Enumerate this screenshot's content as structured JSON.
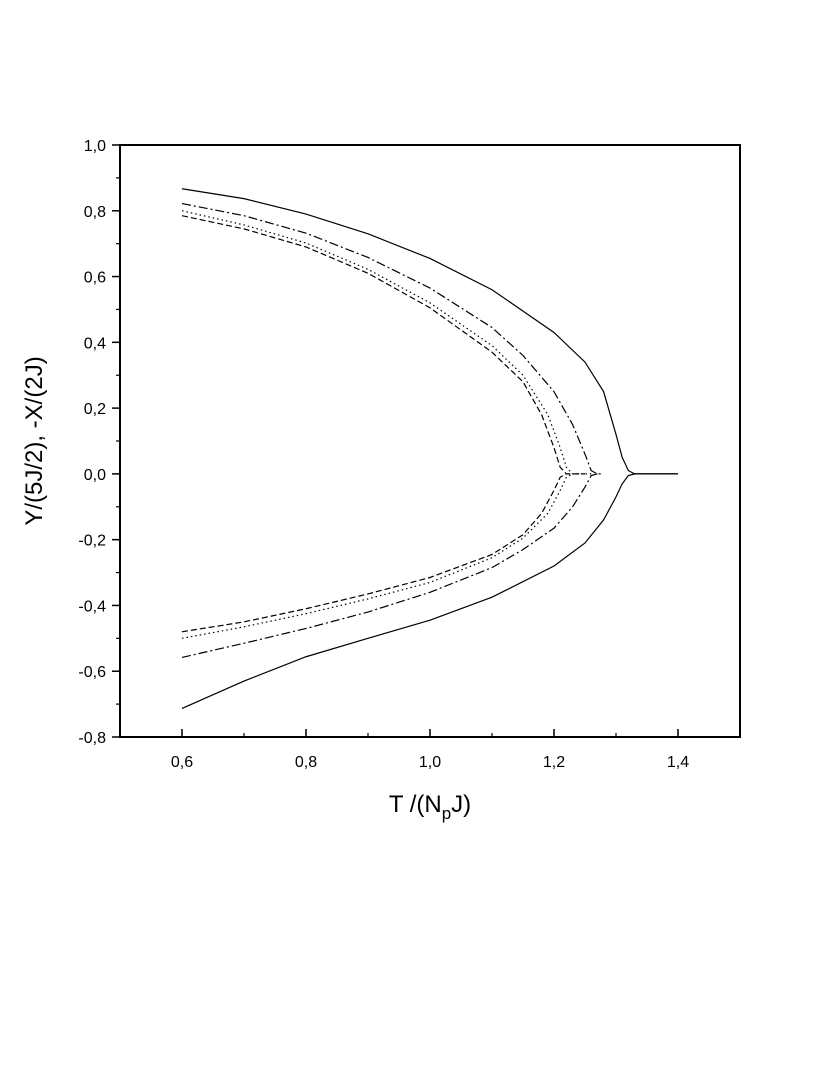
{
  "chart_data": {
    "type": "line",
    "title": "",
    "xlabel": {
      "main": "T /(N",
      "sub": "p",
      "tail": "J)"
    },
    "ylabel": "Y/(5J/2), -X/(2J)",
    "xlim": [
      0.5,
      1.5
    ],
    "ylim": [
      -0.8,
      1.0
    ],
    "x_ticks": [
      0.6,
      0.8,
      1.0,
      1.2,
      1.4
    ],
    "x_tick_labels": [
      "0,6",
      "0,8",
      "1,0",
      "1,2",
      "1,4"
    ],
    "y_ticks": [
      -0.8,
      -0.6,
      -0.4,
      -0.2,
      0.0,
      0.2,
      0.4,
      0.6,
      0.8,
      1.0
    ],
    "y_tick_labels": [
      "-0,8",
      "-0,6",
      "-0,4",
      "-0,2",
      "0,0",
      "0,2",
      "0,4",
      "0,6",
      "0,8",
      "1,0"
    ],
    "grid": false,
    "legend": "none",
    "series": [
      {
        "style": "solid",
        "points": [
          [
            0.6,
            0.867
          ],
          [
            0.7,
            0.837
          ],
          [
            0.8,
            0.79
          ],
          [
            0.9,
            0.73
          ],
          [
            1.0,
            0.655
          ],
          [
            1.1,
            0.56
          ],
          [
            1.2,
            0.43
          ],
          [
            1.25,
            0.34
          ],
          [
            1.28,
            0.25
          ],
          [
            1.3,
            0.12
          ],
          [
            1.31,
            0.05
          ],
          [
            1.32,
            0.01
          ],
          [
            1.33,
            0.0
          ],
          [
            1.4,
            0.0
          ]
        ]
      },
      {
        "style": "solid",
        "points": [
          [
            0.6,
            -0.713
          ],
          [
            0.7,
            -0.63
          ],
          [
            0.8,
            -0.556
          ],
          [
            0.9,
            -0.5
          ],
          [
            1.0,
            -0.445
          ],
          [
            1.1,
            -0.375
          ],
          [
            1.2,
            -0.28
          ],
          [
            1.25,
            -0.21
          ],
          [
            1.28,
            -0.14
          ],
          [
            1.3,
            -0.07
          ],
          [
            1.31,
            -0.03
          ],
          [
            1.32,
            -0.005
          ],
          [
            1.33,
            0.0
          ],
          [
            1.4,
            0.0
          ]
        ]
      },
      {
        "style": "dashdot",
        "points": [
          [
            0.6,
            0.822
          ],
          [
            0.7,
            0.785
          ],
          [
            0.8,
            0.732
          ],
          [
            0.9,
            0.658
          ],
          [
            1.0,
            0.565
          ],
          [
            1.1,
            0.445
          ],
          [
            1.15,
            0.36
          ],
          [
            1.2,
            0.25
          ],
          [
            1.23,
            0.15
          ],
          [
            1.25,
            0.06
          ],
          [
            1.26,
            0.01
          ],
          [
            1.27,
            0.0
          ],
          [
            1.28,
            0.0
          ]
        ]
      },
      {
        "style": "dashdot",
        "points": [
          [
            0.6,
            -0.558
          ],
          [
            0.7,
            -0.515
          ],
          [
            0.8,
            -0.47
          ],
          [
            0.9,
            -0.42
          ],
          [
            1.0,
            -0.36
          ],
          [
            1.1,
            -0.285
          ],
          [
            1.15,
            -0.23
          ],
          [
            1.2,
            -0.165
          ],
          [
            1.23,
            -0.1
          ],
          [
            1.25,
            -0.04
          ],
          [
            1.26,
            -0.005
          ],
          [
            1.27,
            0.0
          ]
        ]
      },
      {
        "style": "dotted",
        "points": [
          [
            0.6,
            0.8
          ],
          [
            0.7,
            0.757
          ],
          [
            0.8,
            0.702
          ],
          [
            0.9,
            0.622
          ],
          [
            1.0,
            0.52
          ],
          [
            1.1,
            0.39
          ],
          [
            1.15,
            0.3
          ],
          [
            1.19,
            0.18
          ],
          [
            1.21,
            0.08
          ],
          [
            1.22,
            0.02
          ],
          [
            1.23,
            0.0
          ],
          [
            1.26,
            0.0
          ]
        ]
      },
      {
        "style": "dotted",
        "points": [
          [
            0.6,
            -0.5
          ],
          [
            0.7,
            -0.465
          ],
          [
            0.8,
            -0.425
          ],
          [
            0.9,
            -0.38
          ],
          [
            1.0,
            -0.33
          ],
          [
            1.1,
            -0.255
          ],
          [
            1.15,
            -0.195
          ],
          [
            1.19,
            -0.12
          ],
          [
            1.21,
            -0.05
          ],
          [
            1.22,
            -0.01
          ],
          [
            1.23,
            0.0
          ]
        ]
      },
      {
        "style": "dashed",
        "points": [
          [
            0.6,
            0.785
          ],
          [
            0.7,
            0.745
          ],
          [
            0.8,
            0.69
          ],
          [
            0.9,
            0.61
          ],
          [
            1.0,
            0.505
          ],
          [
            1.1,
            0.37
          ],
          [
            1.15,
            0.28
          ],
          [
            1.18,
            0.18
          ],
          [
            1.2,
            0.08
          ],
          [
            1.21,
            0.02
          ],
          [
            1.22,
            0.0
          ],
          [
            1.25,
            0.0
          ]
        ]
      },
      {
        "style": "dashed",
        "points": [
          [
            0.6,
            -0.48
          ],
          [
            0.7,
            -0.45
          ],
          [
            0.8,
            -0.41
          ],
          [
            0.9,
            -0.365
          ],
          [
            1.0,
            -0.315
          ],
          [
            1.1,
            -0.245
          ],
          [
            1.15,
            -0.185
          ],
          [
            1.18,
            -0.12
          ],
          [
            1.2,
            -0.05
          ],
          [
            1.21,
            -0.01
          ],
          [
            1.22,
            0.0
          ]
        ]
      }
    ]
  }
}
